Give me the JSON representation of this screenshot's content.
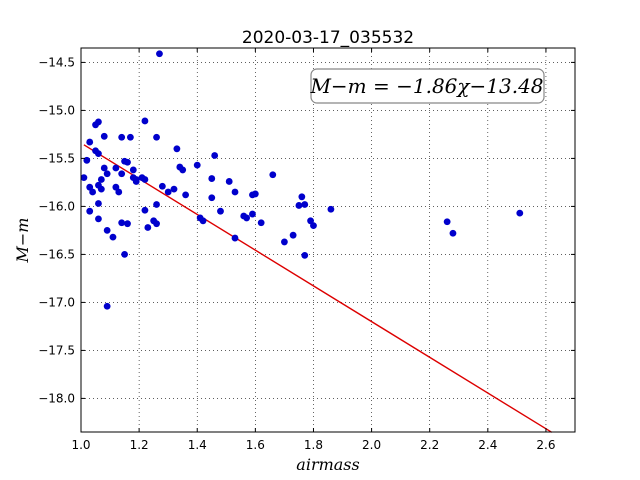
{
  "chart_data": {
    "type": "scatter",
    "title": "2020-03-17_035532",
    "xlabel": "airmass",
    "ylabel": "M−m",
    "xlim": [
      1.0,
      2.7
    ],
    "ylim": [
      -18.35,
      -14.35
    ],
    "xticks": [
      1.0,
      1.2,
      1.4,
      1.6,
      1.8,
      2.0,
      2.2,
      2.4,
      2.6
    ],
    "xtick_labels": [
      "1.0",
      "1.2",
      "1.4",
      "1.6",
      "1.8",
      "2.0",
      "2.2",
      "2.4",
      "2.6"
    ],
    "yticks": [
      -14.5,
      -15.0,
      -15.5,
      -16.0,
      -16.5,
      -17.0,
      -17.5,
      -18.0
    ],
    "ytick_labels": [
      "−14.5",
      "−15.0",
      "−15.5",
      "−16.0",
      "−16.5",
      "−17.0",
      "−17.5",
      "−18.0"
    ],
    "grid": true,
    "point_color": "#0000cc",
    "fit_color": "#dd0000",
    "annotation": "M−m = −1.86χ−13.48",
    "fit": {
      "slope": -1.86,
      "intercept": -13.48,
      "x_range": [
        1.01,
        2.62
      ]
    },
    "points": [
      [
        1.01,
        -15.7
      ],
      [
        1.02,
        -15.52
      ],
      [
        1.03,
        -15.33
      ],
      [
        1.03,
        -16.05
      ],
      [
        1.03,
        -15.8
      ],
      [
        1.04,
        -15.85
      ],
      [
        1.05,
        -15.15
      ],
      [
        1.05,
        -15.42
      ],
      [
        1.06,
        -15.12
      ],
      [
        1.06,
        -15.45
      ],
      [
        1.06,
        -15.78
      ],
      [
        1.06,
        -15.97
      ],
      [
        1.06,
        -16.13
      ],
      [
        1.07,
        -15.72
      ],
      [
        1.07,
        -15.82
      ],
      [
        1.08,
        -15.27
      ],
      [
        1.08,
        -15.6
      ],
      [
        1.09,
        -15.66
      ],
      [
        1.09,
        -16.25
      ],
      [
        1.09,
        -17.04
      ],
      [
        1.11,
        -16.32
      ],
      [
        1.12,
        -15.8
      ],
      [
        1.12,
        -15.6
      ],
      [
        1.13,
        -15.85
      ],
      [
        1.14,
        -15.66
      ],
      [
        1.14,
        -16.17
      ],
      [
        1.14,
        -15.28
      ],
      [
        1.15,
        -16.5
      ],
      [
        1.15,
        -15.53
      ],
      [
        1.16,
        -15.54
      ],
      [
        1.16,
        -16.18
      ],
      [
        1.17,
        -15.28
      ],
      [
        1.18,
        -15.7
      ],
      [
        1.18,
        -15.62
      ],
      [
        1.19,
        -15.72
      ],
      [
        1.19,
        -15.74
      ],
      [
        1.21,
        -15.7
      ],
      [
        1.22,
        -15.72
      ],
      [
        1.22,
        -16.04
      ],
      [
        1.22,
        -15.11
      ],
      [
        1.23,
        -16.22
      ],
      [
        1.25,
        -16.15
      ],
      [
        1.26,
        -16.18
      ],
      [
        1.26,
        -15.98
      ],
      [
        1.26,
        -15.28
      ],
      [
        1.27,
        -14.41
      ],
      [
        1.28,
        -15.79
      ],
      [
        1.3,
        -15.85
      ],
      [
        1.32,
        -15.82
      ],
      [
        1.33,
        -15.4
      ],
      [
        1.34,
        -15.59
      ],
      [
        1.35,
        -15.62
      ],
      [
        1.36,
        -15.88
      ],
      [
        1.4,
        -15.57
      ],
      [
        1.41,
        -16.12
      ],
      [
        1.42,
        -16.15
      ],
      [
        1.45,
        -15.91
      ],
      [
        1.45,
        -15.71
      ],
      [
        1.46,
        -15.47
      ],
      [
        1.48,
        -16.05
      ],
      [
        1.51,
        -15.74
      ],
      [
        1.53,
        -16.33
      ],
      [
        1.53,
        -15.85
      ],
      [
        1.56,
        -16.1
      ],
      [
        1.57,
        -16.12
      ],
      [
        1.59,
        -16.08
      ],
      [
        1.59,
        -15.88
      ],
      [
        1.6,
        -15.87
      ],
      [
        1.62,
        -16.17
      ],
      [
        1.66,
        -15.67
      ],
      [
        1.7,
        -16.37
      ],
      [
        1.73,
        -16.3
      ],
      [
        1.75,
        -15.99
      ],
      [
        1.76,
        -15.9
      ],
      [
        1.77,
        -15.98
      ],
      [
        1.77,
        -16.51
      ],
      [
        1.79,
        -16.15
      ],
      [
        1.8,
        -16.2
      ],
      [
        1.86,
        -16.03
      ],
      [
        2.26,
        -16.16
      ],
      [
        2.28,
        -16.28
      ],
      [
        2.51,
        -16.07
      ]
    ]
  }
}
